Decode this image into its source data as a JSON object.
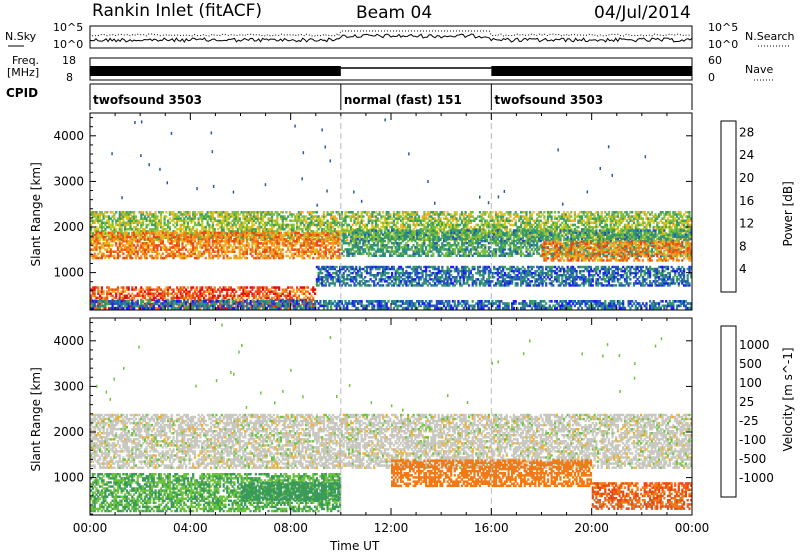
{
  "header": {
    "station": "Rankin Inlet (fitACF)",
    "beam": "Beam 04",
    "date": "04/Jul/2014"
  },
  "summary": {
    "nsky_label": "N.Sky",
    "nsearch_label": "N.Search",
    "nsky_ticks": [
      "10^5",
      "10^0"
    ],
    "nsearch_ticks": [
      "10^5",
      "10^0"
    ],
    "freq_label_1": "Freq.",
    "freq_label_2": "[MHz]",
    "freq_ticks": [
      "18",
      "8"
    ],
    "nave_label": "Nave",
    "nave_ticks": [
      "60",
      "0"
    ],
    "cpid_label": "CPID",
    "cpid_segments": [
      {
        "label": "twofsound 3503",
        "start": 0,
        "end": 10
      },
      {
        "label": "normal (fast) 151",
        "start": 10,
        "end": 16
      },
      {
        "label": "twofsound 3503",
        "start": 16,
        "end": 24
      }
    ]
  },
  "chart_data": [
    {
      "type": "heatmap",
      "title": "",
      "xlabel": "Time UT",
      "ylabel": "Slant Range [km]",
      "xlim": [
        0,
        24
      ],
      "ylim": [
        180,
        4500
      ],
      "x_ticks": [
        "00:00",
        "04:00",
        "08:00",
        "12:00",
        "16:00",
        "20:00",
        "00:00"
      ],
      "x_tick_values": [
        0,
        4,
        8,
        12,
        16,
        20,
        24
      ],
      "y_ticks": [
        1000,
        2000,
        3000,
        4000
      ],
      "colorbar": {
        "label": "Power [dB]",
        "ticks": [
          "4",
          "8",
          "12",
          "16",
          "20",
          "24",
          "28"
        ],
        "tick_values": [
          4,
          8,
          12,
          16,
          20,
          24,
          28
        ],
        "range": [
          0,
          30
        ],
        "colors": [
          "#1a1aff",
          "#2456b8",
          "#2a8a8a",
          "#3da05a",
          "#7cbf3a",
          "#d6c81e",
          "#f5a623",
          "#f07a18",
          "#e84a14",
          "#e01010"
        ]
      },
      "regions": [
        {
          "t0": 0,
          "t1": 24,
          "r0": 1700,
          "r1": 2350,
          "value": 14
        },
        {
          "t0": 0,
          "t1": 10,
          "r0": 1300,
          "r1": 1900,
          "value": 22
        },
        {
          "t0": 10,
          "t1": 24,
          "r0": 1350,
          "r1": 1950,
          "value": 10
        },
        {
          "t0": 18,
          "t1": 24,
          "r0": 1250,
          "r1": 1700,
          "value": 22
        },
        {
          "t0": 0,
          "t1": 9,
          "r0": 200,
          "r1": 700,
          "value": 25
        },
        {
          "t0": 0,
          "t1": 24,
          "r0": 200,
          "r1": 400,
          "value": 6
        },
        {
          "t0": 9,
          "t1": 24,
          "r0": 700,
          "r1": 1150,
          "value": 6
        }
      ]
    },
    {
      "type": "heatmap",
      "title": "",
      "xlabel": "Time UT",
      "ylabel": "Slant Range [km]",
      "xlim": [
        0,
        24
      ],
      "ylim": [
        180,
        4500
      ],
      "x_ticks": [
        "00:00",
        "04:00",
        "08:00",
        "12:00",
        "16:00",
        "20:00",
        "00:00"
      ],
      "x_tick_values": [
        0,
        4,
        8,
        12,
        16,
        20,
        24
      ],
      "y_ticks": [
        1000,
        2000,
        3000,
        4000
      ],
      "colorbar": {
        "label": "Velocity [m s^-1]",
        "ticks": [
          "1000",
          "500",
          "100",
          "25",
          "-25",
          "-100",
          "-500",
          "-1000"
        ],
        "tick_values": [
          1000,
          500,
          100,
          25,
          -25,
          -100,
          -500,
          -1000
        ],
        "colors": [
          "#2a3aa8",
          "#2f7a9a",
          "#3a9a5a",
          "#6cc43a",
          "#c8c8c0",
          "#f0b020",
          "#f07a18",
          "#e84a14",
          "#e01010"
        ]
      },
      "regions": [
        {
          "t0": 0,
          "t1": 24,
          "r0": 1200,
          "r1": 2400,
          "value": 0
        },
        {
          "t0": 0,
          "t1": 10,
          "r0": 250,
          "r1": 1100,
          "value": 100
        },
        {
          "t0": 6,
          "t1": 10,
          "r0": 500,
          "r1": 900,
          "value": 300
        },
        {
          "t0": 12,
          "t1": 20,
          "r0": 800,
          "r1": 1400,
          "value": -300
        },
        {
          "t0": 20,
          "t1": 24,
          "r0": 300,
          "r1": 900,
          "value": -500
        }
      ]
    }
  ]
}
